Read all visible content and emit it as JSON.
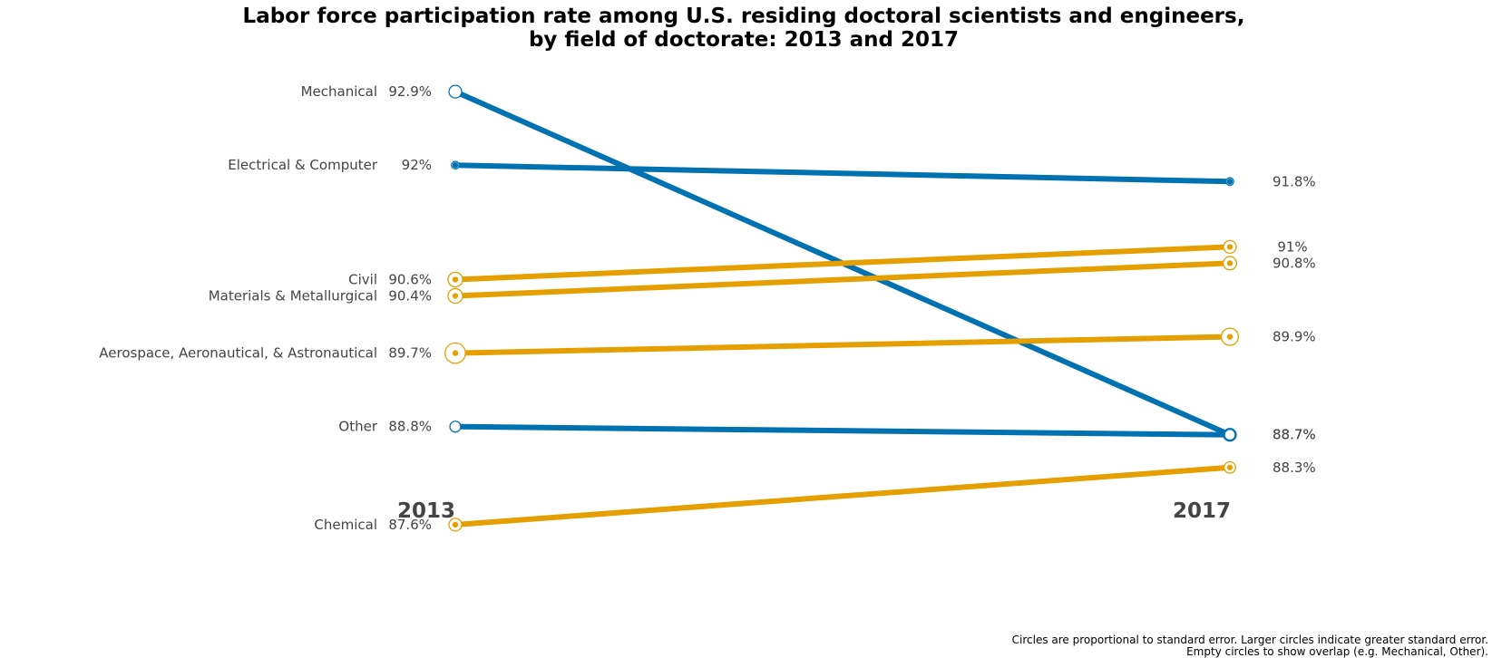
{
  "colors": {
    "blue": "#0072b2",
    "orange": "#e69f00",
    "text": "#444444"
  },
  "chart_data": {
    "type": "line",
    "chart_style": "slope",
    "title_lines": [
      "Labor force participation rate among U.S. residing doctoral scientists and engineers,",
      "by field of doctorate: 2013 and 2017"
    ],
    "x": [
      "2013",
      "2017"
    ],
    "ylim": [
      86.9,
      93.6
    ],
    "grid": false,
    "legend": "none",
    "series": [
      {
        "name": "Mechanical",
        "values": [
          92.9,
          88.7
        ],
        "labels": [
          "92.9%",
          "88.7%"
        ],
        "color": "blue",
        "marker_size": [
          1,
          1
        ],
        "filled_markers": false
      },
      {
        "name": "Electrical & Computer",
        "values": [
          92.0,
          91.8
        ],
        "labels": [
          "92%",
          "91.8%"
        ],
        "color": "blue",
        "marker_size": [
          0.6,
          0.6
        ],
        "filled_markers": true
      },
      {
        "name": "Civil",
        "values": [
          90.6,
          91.0
        ],
        "labels": [
          "90.6%",
          "91%"
        ],
        "color": "orange",
        "marker_size": [
          1.15,
          1
        ],
        "filled_markers": true
      },
      {
        "name": "Materials & Metallurgical",
        "values": [
          90.4,
          90.8
        ],
        "labels": [
          "90.4%",
          "90.8%"
        ],
        "color": "orange",
        "marker_size": [
          1.15,
          1.05
        ],
        "filled_markers": true
      },
      {
        "name": "Aerospace, Aeronautical, & Astronautical",
        "values": [
          89.7,
          89.9
        ],
        "labels": [
          "89.7%",
          "89.9%"
        ],
        "color": "orange",
        "marker_size": [
          1.6,
          1.35
        ],
        "filled_markers": true
      },
      {
        "name": "Other",
        "values": [
          88.8,
          88.7
        ],
        "labels": [
          "88.8%",
          "88.7%"
        ],
        "color": "blue",
        "marker_size": [
          0.85,
          0.85
        ],
        "filled_markers": false
      },
      {
        "name": "Chemical",
        "values": [
          87.6,
          88.3
        ],
        "labels": [
          "87.6%",
          "88.3%"
        ],
        "color": "orange",
        "marker_size": [
          1,
          0.9
        ],
        "filled_markers": true
      }
    ],
    "footnote_lines": [
      "Circles are proportional to standard error. Larger circles indicate greater standard error.",
      "Empty circles to show overlap (e.g. Mechanical, Other)."
    ]
  }
}
